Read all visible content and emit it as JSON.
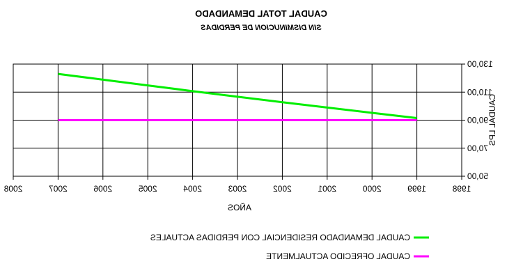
{
  "chart_data": {
    "type": "line",
    "title": "CAUDAL TOTAL DEMANDADO",
    "subtitle": "SIN DISMINUCION DE PERDIDAS",
    "xlabel": "AÑOS",
    "ylabel": "CAUDAL LPS",
    "xlim": [
      1998,
      2008
    ],
    "ylim": [
      50,
      130
    ],
    "x_ticks": [
      "1998",
      "1999",
      "2000",
      "2001",
      "2002",
      "2003",
      "2004",
      "2005",
      "2006",
      "2007",
      "2008"
    ],
    "y_ticks": [
      "50,00",
      "70,00",
      "90,00",
      "110,00",
      "130,00"
    ],
    "grid": true,
    "legend_position": "bottom",
    "series": [
      {
        "name": "CAUDAL DEMANDADO RESIDENCIAL CON PERDIDAS ACTUALES",
        "color": "#00ee00",
        "x": [
          1999,
          2000,
          2001,
          2002,
          2003,
          2004,
          2005,
          2006,
          2007
        ],
        "values": [
          91.5,
          95.2,
          99.0,
          102.8,
          106.7,
          110.7,
          114.8,
          118.9,
          123.0
        ]
      },
      {
        "name": "CAUDAL OFRECIDO ACTUALMENTE",
        "color": "#ff00ff",
        "x": [
          1999,
          2007
        ],
        "values": [
          90.0,
          90.0
        ]
      }
    ]
  }
}
